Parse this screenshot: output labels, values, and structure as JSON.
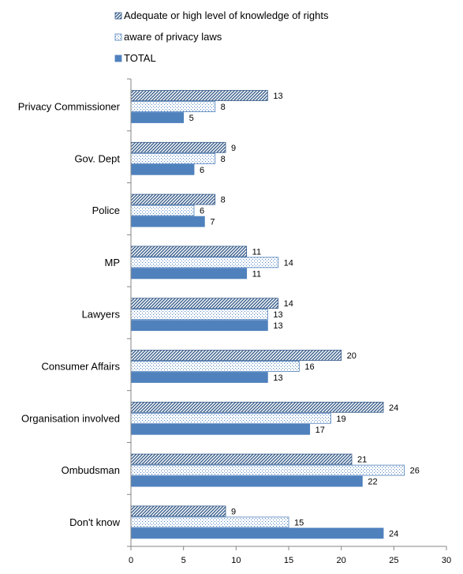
{
  "chart_data": {
    "type": "bar",
    "orientation": "horizontal",
    "categories": [
      "Privacy Commissioner",
      "Gov. Dept",
      "Police",
      "MP",
      "Lawyers",
      "Consumer Affairs",
      "Organisation involved",
      "Ombudsman",
      "Don't know"
    ],
    "series": [
      {
        "name": "Adequate or high level of knowledge of rights",
        "values": [
          13,
          9,
          8,
          11,
          14,
          20,
          24,
          21,
          9
        ],
        "color": "#4f81bd",
        "pattern": "diagonal-hatch"
      },
      {
        "name": "aware of privacy laws",
        "values": [
          8,
          8,
          6,
          14,
          13,
          16,
          19,
          26,
          15
        ],
        "color": "#4f81bd",
        "pattern": "dotted"
      },
      {
        "name": "TOTAL",
        "values": [
          5,
          6,
          7,
          11,
          13,
          13,
          17,
          22,
          24
        ],
        "color": "#4f81bd",
        "pattern": "solid"
      }
    ],
    "xlim": [
      0,
      30
    ],
    "xticks": [
      0,
      5,
      10,
      15,
      20,
      25,
      30
    ],
    "legend_position": "top",
    "grid": false,
    "data_labels": true
  }
}
